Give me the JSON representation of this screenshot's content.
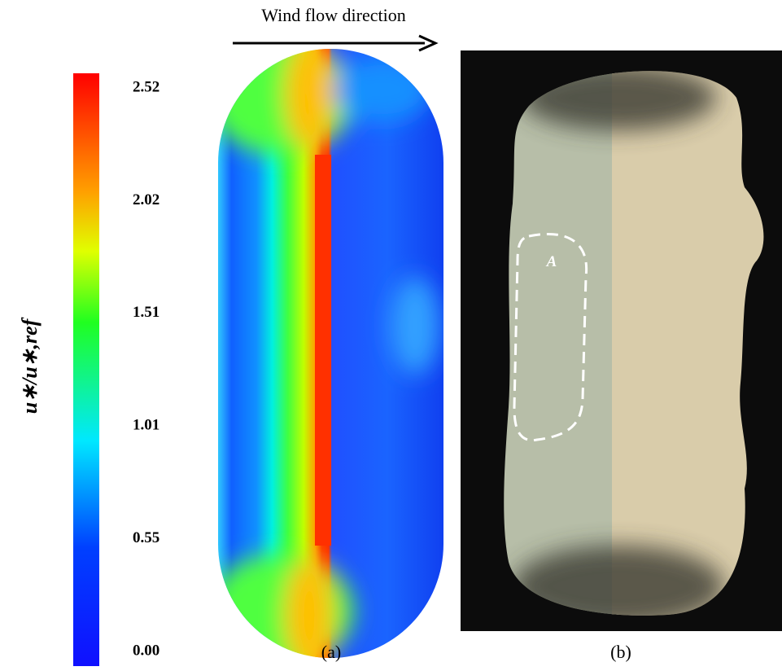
{
  "header": {
    "title": "Wind flow direction"
  },
  "colorbar": {
    "label": "u∗/u∗,ref",
    "ticks": [
      "2.52",
      "2.02",
      "1.51",
      "1.01",
      "0.55",
      "0.00"
    ]
  },
  "panels": [
    {
      "label": "(a)"
    },
    {
      "label": "(b)",
      "annotation": "A"
    }
  ]
}
